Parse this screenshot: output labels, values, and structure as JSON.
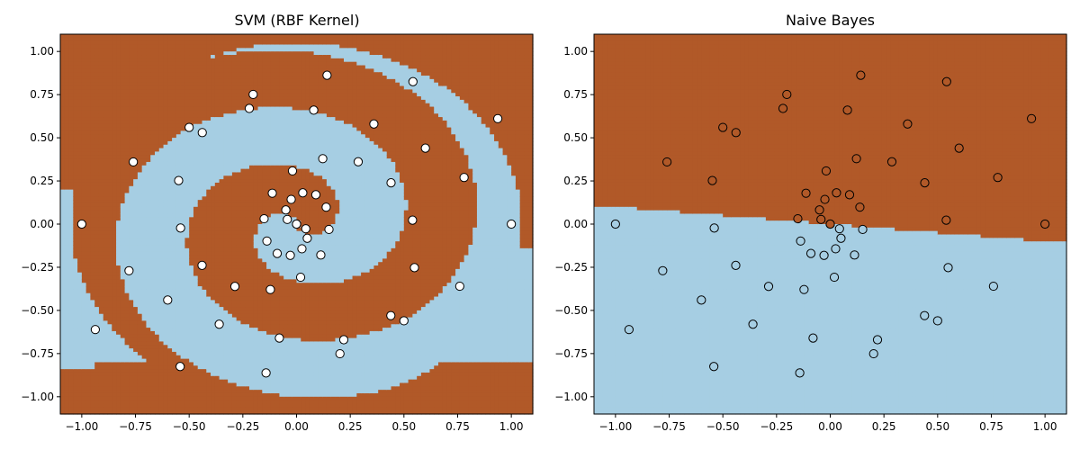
{
  "colors": {
    "class0": "#a6cee3",
    "class1": "#b15928",
    "edge": "#000000"
  },
  "chart_data": [
    {
      "type": "scatter",
      "title": "SVM (RBF Kernel)",
      "xlim": [
        -1.1,
        1.1
      ],
      "ylim": [
        -1.1,
        1.1
      ],
      "xticks": [
        -1.0,
        -0.75,
        -0.5,
        -0.25,
        0.0,
        0.25,
        0.5,
        0.75,
        1.0
      ],
      "yticks": [
        -1.0,
        -0.75,
        -0.5,
        -0.25,
        0.0,
        0.25,
        0.5,
        0.75,
        1.0
      ],
      "xtick_labels": [
        "−1.00",
        "−0.75",
        "−0.50",
        "−0.25",
        "0.00",
        "0.25",
        "0.50",
        "0.75",
        "1.00"
      ],
      "ytick_labels": [
        "−1.00",
        "−0.75",
        "−0.50",
        "−0.25",
        "0.00",
        "0.25",
        "0.50",
        "0.75",
        "1.00"
      ],
      "background": "decision regions follow the two interleaved spiral arms",
      "points_color": "white (test points, class not shown)",
      "series": [
        {
          "class": 0,
          "x": [
            0,
            0.043,
            0.05,
            0.025,
            -0.029,
            -0.09,
            -0.138,
            -0.151,
            -0.113,
            -0.019,
            0.122,
            0.287,
            0.44,
            0.54,
            0.549,
            0.439,
            0.202,
            -0.142,
            -0.542,
            -0.937,
            -1.0,
            -0.76,
            -0.5,
            -0.22,
            0.08,
            0.36,
            0.6,
            0.78
          ],
          "y": [
            0,
            -0.027,
            -0.082,
            -0.143,
            -0.181,
            -0.17,
            -0.098,
            0.031,
            0.179,
            0.308,
            0.379,
            0.361,
            0.239,
            0.023,
            -0.252,
            -0.53,
            -0.751,
            -0.862,
            -0.825,
            -0.611,
            0,
            0.36,
            0.56,
            0.67,
            0.66,
            0.58,
            0.44,
            0.27
          ]
        },
        {
          "class": 1,
          "x": [
            0,
            -0.043,
            -0.05,
            -0.025,
            0.029,
            0.09,
            0.138,
            0.151,
            0.113,
            0.019,
            -0.122,
            -0.287,
            -0.44,
            -0.54,
            -0.549,
            -0.439,
            -0.202,
            0.142,
            0.542,
            0.937,
            1.0,
            0.76,
            0.5,
            0.22,
            -0.08,
            -0.36,
            -0.6,
            -0.78
          ],
          "y": [
            0,
            0.027,
            0.082,
            0.143,
            0.181,
            0.17,
            0.098,
            -0.031,
            -0.179,
            -0.308,
            -0.379,
            -0.361,
            -0.239,
            -0.023,
            0.252,
            0.53,
            0.751,
            0.862,
            0.825,
            0.611,
            0,
            -0.36,
            -0.56,
            -0.67,
            -0.66,
            -0.58,
            -0.44,
            -0.27
          ]
        }
      ]
    },
    {
      "type": "scatter",
      "title": "Naive Bayes",
      "xlim": [
        -1.1,
        1.1
      ],
      "ylim": [
        -1.1,
        1.1
      ],
      "xticks": [
        -1.0,
        -0.75,
        -0.5,
        -0.25,
        0.0,
        0.25,
        0.5,
        0.75,
        1.0
      ],
      "yticks": [
        -1.0,
        -0.75,
        -0.5,
        -0.25,
        0.0,
        0.25,
        0.5,
        0.75,
        1.0
      ],
      "xtick_labels": [
        "−1.00",
        "−0.75",
        "−0.50",
        "−0.25",
        "0.00",
        "0.25",
        "0.50",
        "0.75",
        "1.00"
      ],
      "ytick_labels": [
        "−1.00",
        "−0.75",
        "−0.50",
        "−0.25",
        "0.00",
        "0.25",
        "0.50",
        "0.75",
        "1.00"
      ],
      "background": "decision boundary is nearly straight, dark region above the line through (-1.1, 0.11) and (1.1, -0.11)",
      "points_color": "filled with the predicted class colour",
      "series": [
        {
          "class": 0,
          "x": [
            0,
            0.043,
            0.05,
            0.025,
            -0.029,
            -0.09,
            -0.138,
            -0.151,
            -0.113,
            -0.019,
            0.122,
            0.287,
            0.44,
            0.54,
            0.549,
            0.439,
            0.202,
            -0.142,
            -0.542,
            -0.937,
            -1.0,
            -0.76,
            -0.5,
            -0.22,
            0.08,
            0.36,
            0.6,
            0.78
          ],
          "y": [
            0,
            -0.027,
            -0.082,
            -0.143,
            -0.181,
            -0.17,
            -0.098,
            0.031,
            0.179,
            0.308,
            0.379,
            0.361,
            0.239,
            0.023,
            -0.252,
            -0.53,
            -0.751,
            -0.862,
            -0.825,
            -0.611,
            0,
            0.36,
            0.56,
            0.67,
            0.66,
            0.58,
            0.44,
            0.27
          ]
        },
        {
          "class": 1,
          "x": [
            0,
            -0.043,
            -0.05,
            -0.025,
            0.029,
            0.09,
            0.138,
            0.151,
            0.113,
            0.019,
            -0.122,
            -0.287,
            -0.44,
            -0.54,
            -0.549,
            -0.439,
            -0.202,
            0.142,
            0.542,
            0.937,
            1.0,
            0.76,
            0.5,
            0.22,
            -0.08,
            -0.36,
            -0.6,
            -0.78
          ],
          "y": [
            0,
            0.027,
            0.082,
            0.143,
            0.181,
            0.17,
            0.098,
            -0.031,
            -0.179,
            -0.308,
            -0.379,
            -0.361,
            -0.239,
            -0.023,
            0.252,
            0.53,
            0.751,
            0.862,
            0.825,
            0.611,
            0,
            -0.36,
            -0.56,
            -0.67,
            -0.66,
            -0.58,
            -0.44,
            -0.27
          ]
        }
      ]
    }
  ]
}
